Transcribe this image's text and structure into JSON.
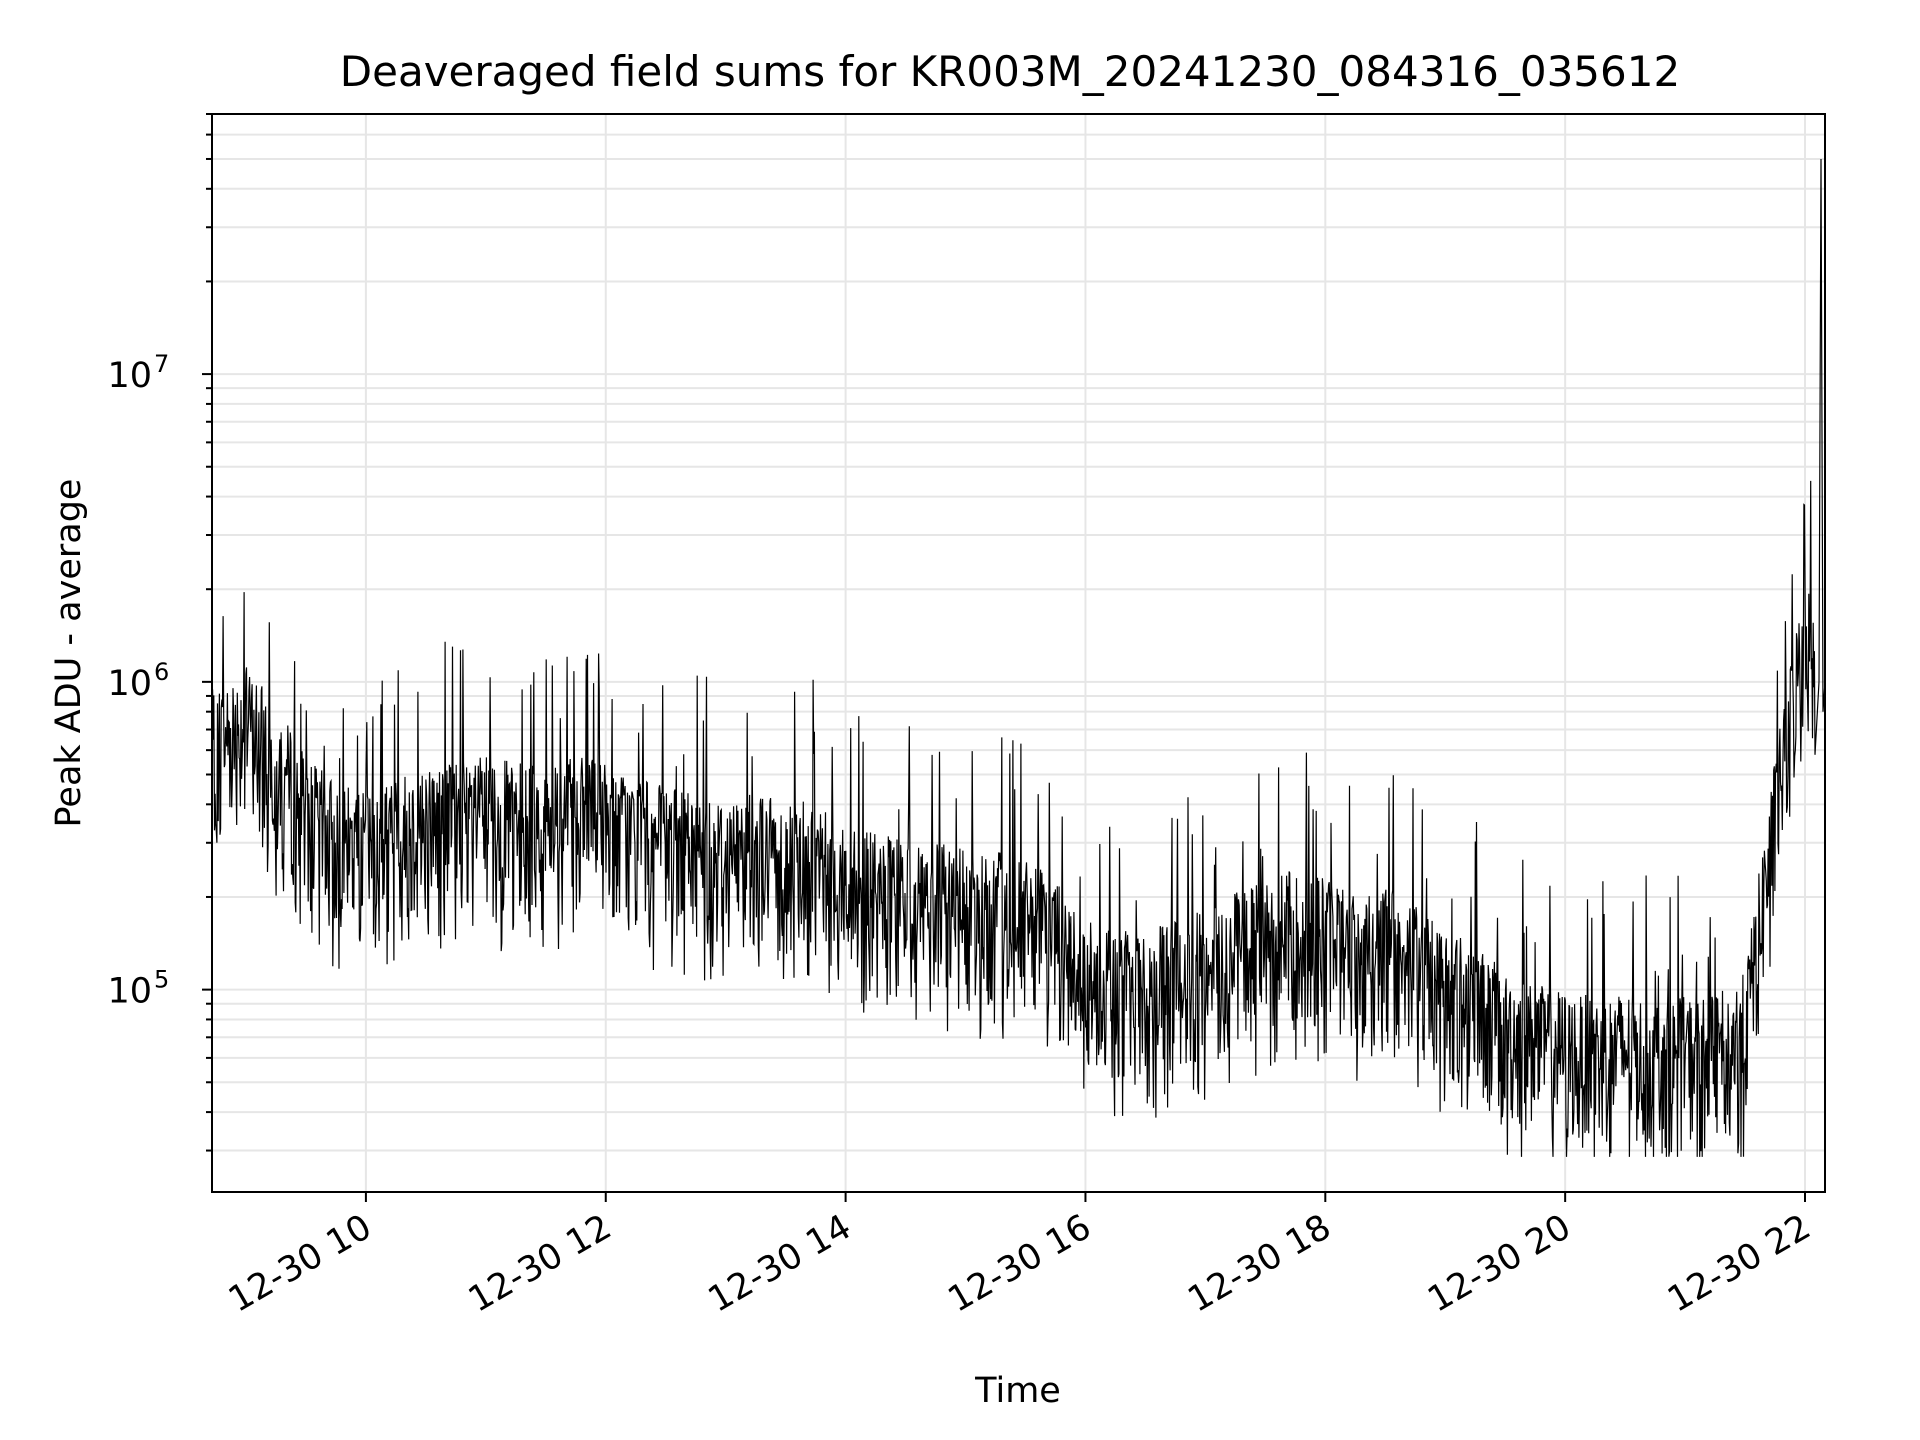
{
  "chart_data": {
    "type": "line",
    "title": "Deaveraged field sums for KR003M_20241230_084316_035612",
    "xlabel": "Time",
    "ylabel": "Peak ADU - average",
    "x_tick_labels": [
      "12-30 10",
      "12-30 12",
      "12-30 14",
      "12-30 16",
      "12-30 18",
      "12-30 20",
      "12-30 22"
    ],
    "y_tick_labels": [
      {
        "base": "10",
        "exp": "5"
      },
      {
        "base": "10",
        "exp": "6"
      },
      {
        "base": "10",
        "exp": "7"
      }
    ],
    "yscale": "log",
    "ylim": [
      22000,
      70000000
    ],
    "xlim": [
      "2024-12-30 08:43",
      "2024-12-30 22:10"
    ],
    "grid": true,
    "line_color": "#000000",
    "series": [
      {
        "x": [
          "2024-12-30 08:43",
          "2024-12-30 09:00",
          "2024-12-30 09:15",
          "2024-12-30 09:30",
          "2024-12-30 09:45",
          "2024-12-30 10:00",
          "2024-12-30 10:15",
          "2024-12-30 10:30",
          "2024-12-30 10:45",
          "2024-12-30 11:00",
          "2024-12-30 11:15",
          "2024-12-30 11:30",
          "2024-12-30 11:45",
          "2024-12-30 12:00",
          "2024-12-30 12:15",
          "2024-12-30 12:30",
          "2024-12-30 12:45",
          "2024-12-30 13:00",
          "2024-12-30 13:15",
          "2024-12-30 13:30",
          "2024-12-30 13:45",
          "2024-12-30 14:00",
          "2024-12-30 14:15",
          "2024-12-30 14:30",
          "2024-12-30 14:45",
          "2024-12-30 15:00",
          "2024-12-30 15:15",
          "2024-12-30 15:30",
          "2024-12-30 15:45",
          "2024-12-30 16:00",
          "2024-12-30 16:15",
          "2024-12-30 16:30",
          "2024-12-30 16:45",
          "2024-12-30 17:00",
          "2024-12-30 17:15",
          "2024-12-30 17:30",
          "2024-12-30 17:45",
          "2024-12-30 18:00",
          "2024-12-30 18:15",
          "2024-12-30 18:30",
          "2024-12-30 18:45",
          "2024-12-30 19:00",
          "2024-12-30 19:15",
          "2024-12-30 19:30",
          "2024-12-30 19:45",
          "2024-12-30 20:00",
          "2024-12-30 20:15",
          "2024-12-30 20:30",
          "2024-12-30 20:45",
          "2024-12-30 21:00",
          "2024-12-30 21:15",
          "2024-12-30 21:30",
          "2024-12-30 21:45",
          "2024-12-30 22:00",
          "2024-12-30 22:05",
          "2024-12-30 22:08",
          "2024-12-30 22:10"
        ],
        "values": [
          500000,
          600000,
          450000,
          300000,
          250000,
          230000,
          260000,
          280000,
          300000,
          300000,
          290000,
          280000,
          300000,
          290000,
          260000,
          240000,
          230000,
          220000,
          230000,
          220000,
          230000,
          180000,
          170000,
          160000,
          160000,
          150000,
          150000,
          140000,
          120000,
          90000,
          85000,
          80000,
          90000,
          95000,
          110000,
          120000,
          130000,
          125000,
          110000,
          115000,
          100000,
          85000,
          75000,
          60000,
          55000,
          52000,
          50000,
          52000,
          48000,
          50000,
          50000,
          60000,
          300000,
          1200000,
          900000,
          50000000,
          1000000
        ]
      }
    ]
  }
}
